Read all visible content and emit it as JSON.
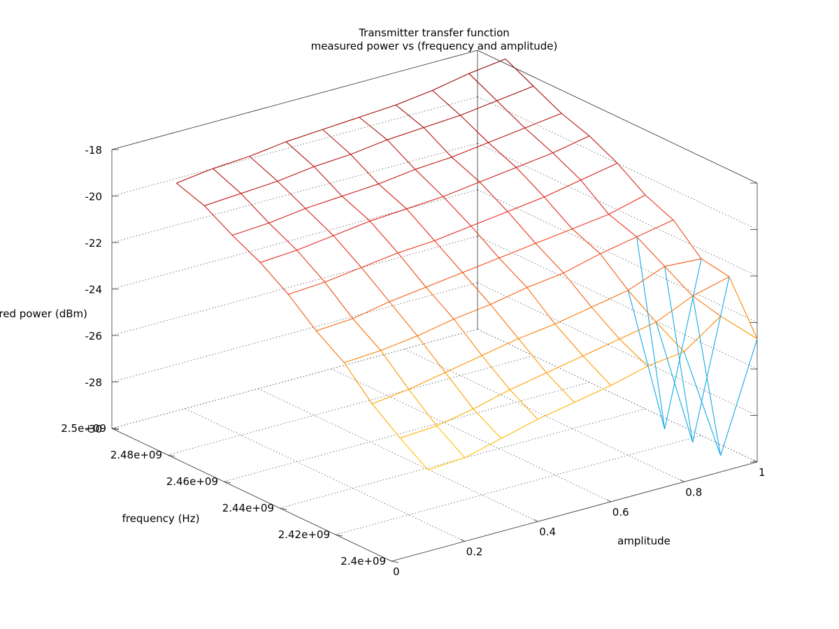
{
  "chart_data": {
    "type": "surface",
    "title": "Transmitter transfer function",
    "subtitle": "measured power vs (frequency and amplitude)",
    "xlabel": "frequency (Hz)",
    "ylabel": "amplitude",
    "zlabel": "measured power (dBm)",
    "xlim": [
      2400000000,
      2500000000
    ],
    "ylim": [
      0,
      1
    ],
    "zlim": [
      -30,
      -18
    ],
    "x_ticks": [
      2400000000,
      2420000000,
      2440000000,
      2460000000,
      2480000000,
      2500000000
    ],
    "x_tick_labels": [
      "2.4e+09",
      "2.42e+09",
      "2.44e+09",
      "2.46e+09",
      "2.48e+09",
      "2.5e+09"
    ],
    "y_ticks": [
      0,
      0.2,
      0.4,
      0.6,
      0.8,
      1
    ],
    "y_tick_labels": [
      "0",
      "0.2",
      "0.4",
      "0.6",
      "0.8",
      "1"
    ],
    "z_ticks": [
      -30,
      -28,
      -26,
      -24,
      -22,
      -20,
      -18
    ],
    "z_tick_labels": [
      "-30",
      "-28",
      "-26",
      "-24",
      "-22",
      "-20",
      "-18"
    ],
    "grid": true,
    "colormap": [
      "#8b0000",
      "#e8281e",
      "#ff8c00",
      "#ffd700",
      "#00d0ff",
      "#1e90ff"
    ],
    "frequencies": [
      2400000000,
      2410000000,
      2420000000,
      2430000000,
      2440000000,
      2450000000,
      2460000000,
      2470000000,
      2480000000,
      2490000000
    ],
    "amplitudes": [
      0.1,
      0.2,
      0.3,
      0.4,
      0.5,
      0.6,
      0.7,
      0.8,
      0.9,
      1.0
    ],
    "z": [
      [
        -26.5,
        -26.4,
        -26.0,
        -25.6,
        -25.3,
        -25.0,
        -24.6,
        -24.4,
        -23.3,
        -24.7
      ],
      [
        -25.7,
        -25.6,
        -25.3,
        -24.9,
        -24.6,
        -24.3,
        -24.0,
        -23.7,
        -23.0,
        -22.6
      ],
      [
        -24.8,
        -24.6,
        -24.3,
        -24.0,
        -23.7,
        -23.5,
        -23.2,
        -22.9,
        -22.3,
        -22.4
      ],
      [
        -23.6,
        -23.5,
        -23.3,
        -23.0,
        -22.8,
        -22.5,
        -22.3,
        -21.9,
        -21.6,
        -21.3
      ],
      [
        -22.8,
        -22.7,
        -22.4,
        -22.2,
        -22.0,
        -21.8,
        -21.6,
        -21.4,
        -21.2,
        -20.8
      ],
      [
        -21.8,
        -21.7,
        -21.5,
        -21.3,
        -21.2,
        -21.0,
        -20.8,
        -20.6,
        -20.3,
        -20.0
      ],
      [
        -21.0,
        -20.9,
        -20.7,
        -20.5,
        -20.4,
        -20.3,
        -20.1,
        -19.9,
        -19.7,
        -19.4
      ],
      [
        -20.4,
        -20.3,
        -20.1,
        -20.0,
        -19.9,
        -19.7,
        -19.6,
        -19.4,
        -19.2,
        -19.0
      ],
      [
        -19.7,
        -19.6,
        -19.5,
        -19.3,
        -19.2,
        -19.0,
        -18.9,
        -18.8,
        -18.6,
        -18.4
      ],
      [
        -19.3,
        -19.1,
        -19.0,
        -18.8,
        -18.7,
        -18.6,
        -18.5,
        -18.3,
        -18.0,
        -17.8
      ]
    ],
    "outliers": [
      {
        "frequency": 2400000000,
        "amplitude": 0.9,
        "power": -29.3
      },
      {
        "frequency": 2410000000,
        "amplitude": 0.9,
        "power": -29.3
      },
      {
        "frequency": 2420000000,
        "amplitude": 0.9,
        "power": -29.3
      }
    ]
  }
}
